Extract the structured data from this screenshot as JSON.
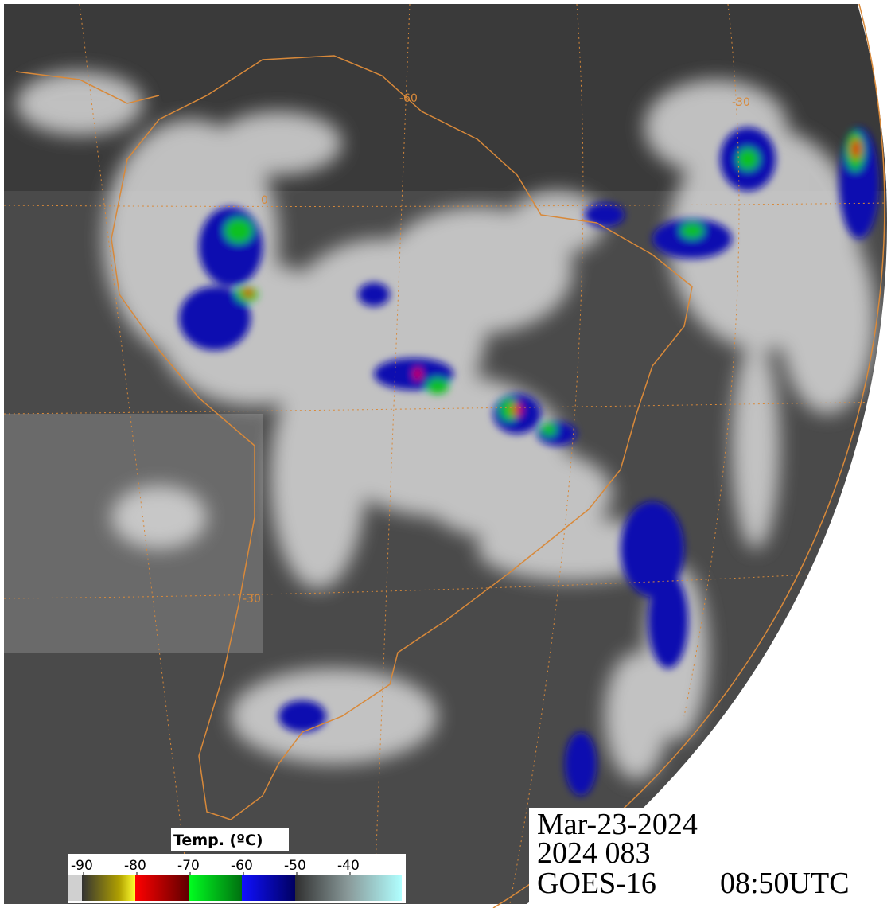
{
  "stamp": {
    "date": "Mar-23-2024",
    "julian": "2024 083",
    "satellite": "GOES-16",
    "time": "08:50UTC"
  },
  "legend": {
    "title": "Temp. (ºC)",
    "ticks": [
      -90,
      -80,
      -70,
      -60,
      -50,
      -40
    ]
  },
  "grid_labels": [
    "-60",
    "-30",
    "-30",
    "0"
  ]
}
